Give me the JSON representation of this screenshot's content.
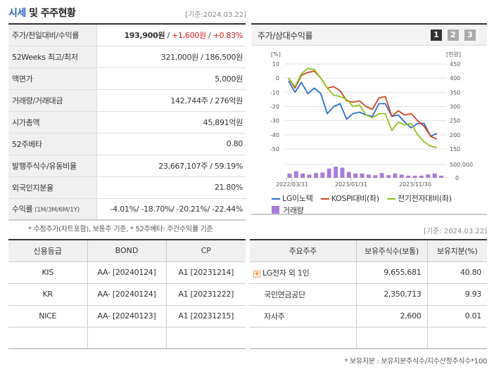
{
  "header": {
    "title_highlight": "시세",
    "title_rest": " 및 주주현황",
    "base_date": "[기준:2024.03.22]"
  },
  "price_table": {
    "rows": [
      {
        "label": "주가/전일대비/수익률",
        "price": "193,900원",
        "sep1": " / ",
        "change": "+1,600원",
        "sep2": " / ",
        "pct": "+0.83%"
      },
      {
        "label": "52Weeks 최고/최저",
        "value": "321,000원 / 186,500원"
      },
      {
        "label": "액면가",
        "value": "5,000원"
      },
      {
        "label": "거래량/거래대금",
        "value": "142,744주 / 276억원"
      },
      {
        "label": "시가총액",
        "value": "45,891억원"
      },
      {
        "label": "52주베타",
        "value": "0.80"
      },
      {
        "label": "발행주식수/유동비율",
        "value": "23,667,107주 / 59.19%"
      },
      {
        "label": "외국인지분율",
        "value": "21.80%"
      },
      {
        "label": "수익률",
        "label_sub": " (1M/3M/6M/1Y)",
        "value": "-4.01%/ -18.70%/ -20.21%/ -22.44%"
      }
    ],
    "note": "* 수정주가(차트포함), 보통주 기준, * 52주베타: 주간수익률 기준"
  },
  "chart_panel": {
    "title": "주가/상대수익률",
    "pages": [
      "1",
      "2",
      "3"
    ],
    "active_page": "1"
  },
  "chart_data": {
    "type": "line",
    "title": "주가/상대수익률",
    "left_axis_label": "[%]",
    "right_axis_label": "[천원]",
    "left_ticks": [
      10,
      0,
      -10,
      -20,
      -30,
      -40,
      -50
    ],
    "right_ticks": [
      450,
      400,
      350,
      300,
      250,
      200,
      150
    ],
    "volume_ticks": [
      "500,000",
      "0"
    ],
    "x_tick_labels": [
      "2022/03/31",
      "2023/01/31",
      "2023/11/30"
    ],
    "ylim_left": [
      -50,
      10
    ],
    "ylim_right": [
      150,
      450
    ],
    "series": [
      {
        "name": "LG이노텍",
        "color": "#2a6fd6",
        "axis": "right",
        "values": [
          -2,
          -10,
          -3,
          -11,
          -7,
          -11,
          -25,
          -20,
          -18,
          -29,
          -25,
          -24,
          -26,
          -27,
          -18,
          -18,
          -27,
          -26,
          -31,
          -35,
          -32,
          -32,
          -41,
          -39
        ]
      },
      {
        "name": "KOSPI대비(좌)",
        "color": "#d4441c",
        "axis": "left",
        "values": [
          0,
          -7,
          2,
          4,
          5,
          0,
          -7,
          -6,
          -9,
          -16,
          -17,
          -16,
          -20,
          -22,
          -14,
          -13,
          -27,
          -23,
          -26,
          -25,
          -30,
          -34,
          -41,
          -43
        ]
      },
      {
        "name": "전기전자대비(좌)",
        "color": "#8cc21f",
        "axis": "left",
        "values": [
          0,
          -6,
          3,
          7,
          6,
          0,
          -7,
          -12,
          -13,
          -15,
          -20,
          -19,
          -26,
          -28,
          -25,
          -25,
          -37,
          -31,
          -33,
          -32,
          -40,
          -45,
          -48,
          -49
        ]
      }
    ],
    "volume": {
      "name": "거래량",
      "color": "#a77bdb",
      "values": [
        160000,
        250000,
        160000,
        120000,
        180000,
        200000,
        350000,
        420000,
        380000,
        220000,
        160000,
        160000,
        120000,
        100000,
        180000,
        100000,
        160000,
        120000,
        80000,
        80000,
        80000,
        130000,
        160000,
        80000
      ]
    },
    "legend": [
      "LG이노텍",
      "KOSPI대비(좌)",
      "전기전자대비(좌)",
      "거래량"
    ],
    "legend_position": "bottom"
  },
  "chart_base_date": "[기준: 2024.03.22]",
  "credit_table": {
    "headers": [
      "신용등급",
      "BOND",
      "CP"
    ],
    "rows": [
      [
        "KIS",
        "AA-  [20240124]",
        "A1  [20231214]"
      ],
      [
        "KR",
        "AA-  [20240124]",
        "A1  [20231222]"
      ],
      [
        "NICE",
        "AA-  [20240123]",
        "A1  [20231215]"
      ],
      [
        "",
        "",
        ""
      ]
    ]
  },
  "holder_table": {
    "headers": [
      "주요주주",
      "보유주식수(보통)",
      "보유지분(%)"
    ],
    "rows": [
      {
        "name": "LG전자 외 1인",
        "shares": "9,655,681",
        "pct": "40.80",
        "expandable": true
      },
      {
        "name": "국민연금공단",
        "shares": "2,350,713",
        "pct": "9.93"
      },
      {
        "name": "자사주",
        "shares": "2,600",
        "pct": "0.01"
      },
      {
        "name": "",
        "shares": "",
        "pct": ""
      }
    ],
    "note": "* 보유지분 : 보유지분주식수/지수산정주식수*100"
  },
  "colors": {
    "accent_blue": "#2a62c9",
    "up_red": "#d81b1b",
    "down_blue": "#1f5dd8",
    "header_bg": "#f0f0f0"
  }
}
